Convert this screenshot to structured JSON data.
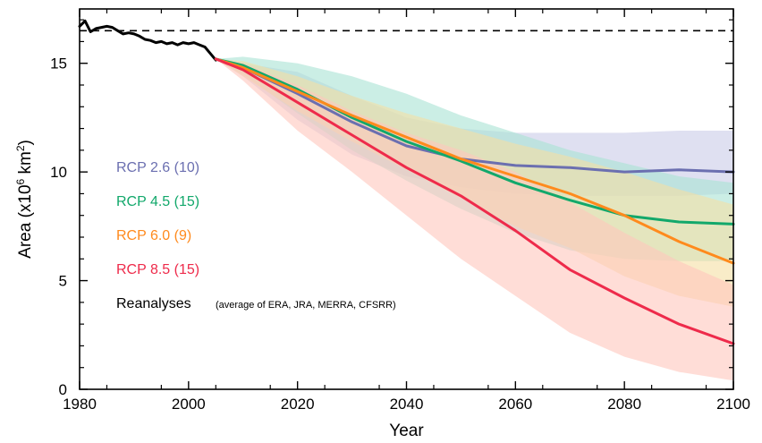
{
  "chart_data": {
    "type": "line",
    "xlabel": "Year",
    "ylabel": "Area (x10^6 km^2)",
    "ylabel_parts": {
      "base": "Area (x10",
      "exp1": "6",
      "mid": " km",
      "exp2": "2",
      "end": ")"
    },
    "xlim": [
      1980,
      2100
    ],
    "ylim": [
      0,
      17.5
    ],
    "xticks": [
      1980,
      2000,
      2020,
      2040,
      2060,
      2080,
      2100
    ],
    "yticks": [
      0,
      5,
      10,
      15
    ],
    "reference_line": {
      "y": 16.5,
      "style": "dashed",
      "color": "#000000"
    },
    "series": [
      {
        "name": "RCP 2.6 (10)",
        "color": "#6b6fb0",
        "band_color": "#c9cbe8",
        "x": [
          2005,
          2010,
          2020,
          2030,
          2040,
          2050,
          2060,
          2070,
          2080,
          2090,
          2100
        ],
        "y": [
          15.2,
          14.8,
          13.6,
          12.3,
          11.2,
          10.6,
          10.3,
          10.2,
          10.0,
          10.1,
          10.0
        ],
        "band_upper": [
          15.2,
          15.0,
          14.6,
          13.5,
          12.5,
          12.0,
          11.8,
          11.8,
          11.8,
          11.9,
          11.9
        ],
        "band_lower": [
          15.2,
          14.4,
          12.4,
          10.8,
          9.8,
          9.3,
          9.0,
          8.9,
          8.9,
          8.9,
          9.0
        ]
      },
      {
        "name": "RCP 4.5 (15)",
        "color": "#12a86b",
        "band_color": "#a8e3d4",
        "x": [
          2005,
          2010,
          2020,
          2030,
          2040,
          2050,
          2060,
          2070,
          2080,
          2090,
          2100
        ],
        "y": [
          15.2,
          14.9,
          13.8,
          12.5,
          11.4,
          10.5,
          9.5,
          8.7,
          8.0,
          7.7,
          7.6
        ],
        "band_upper": [
          15.2,
          15.3,
          15.0,
          14.4,
          13.6,
          12.6,
          11.8,
          11.0,
          10.4,
          9.8,
          9.5
        ],
        "band_lower": [
          15.2,
          14.5,
          12.7,
          11.0,
          9.6,
          8.3,
          7.2,
          6.4,
          6.0,
          5.9,
          5.9
        ]
      },
      {
        "name": "RCP 6.0 (9)",
        "color": "#ff8a1d",
        "band_color": "#f5dfa3",
        "x": [
          2005,
          2010,
          2020,
          2030,
          2040,
          2050,
          2060,
          2070,
          2080,
          2090,
          2100
        ],
        "y": [
          15.2,
          14.8,
          13.7,
          12.6,
          11.6,
          10.6,
          9.8,
          9.0,
          8.0,
          6.8,
          5.8
        ],
        "band_upper": [
          15.2,
          15.1,
          14.4,
          13.5,
          12.7,
          12.0,
          11.3,
          10.7,
          10.0,
          9.2,
          8.5
        ],
        "band_lower": [
          15.2,
          14.4,
          12.8,
          11.4,
          10.1,
          8.8,
          7.5,
          6.5,
          5.2,
          4.3,
          3.8
        ]
      },
      {
        "name": "RCP 8.5 (15)",
        "color": "#ee2b4b",
        "band_color": "#ffc6bd",
        "x": [
          2005,
          2010,
          2020,
          2030,
          2040,
          2050,
          2060,
          2070,
          2080,
          2090,
          2100
        ],
        "y": [
          15.2,
          14.7,
          13.2,
          11.7,
          10.2,
          8.9,
          7.3,
          5.5,
          4.2,
          3.0,
          2.1
        ],
        "band_upper": [
          15.2,
          15.0,
          14.0,
          12.8,
          11.8,
          11.0,
          10.0,
          8.6,
          7.2,
          5.9,
          4.8
        ],
        "band_lower": [
          15.2,
          14.2,
          11.9,
          10.0,
          8.0,
          6.0,
          4.3,
          2.6,
          1.5,
          0.8,
          0.4
        ]
      },
      {
        "name": "Reanalyses",
        "note": "(average of ERA, JRA, MERRA, CFSRR)",
        "color": "#000000",
        "x": [
          1980,
          1981,
          1982,
          1983,
          1984,
          1985,
          1986,
          1987,
          1988,
          1989,
          1990,
          1991,
          1992,
          1993,
          1994,
          1995,
          1996,
          1997,
          1998,
          1999,
          2000,
          2001,
          2002,
          2003,
          2004,
          2005
        ],
        "y": [
          16.7,
          16.95,
          16.45,
          16.6,
          16.65,
          16.7,
          16.65,
          16.5,
          16.35,
          16.4,
          16.35,
          16.25,
          16.1,
          16.05,
          15.95,
          16.0,
          15.9,
          15.95,
          15.85,
          15.95,
          15.9,
          15.95,
          15.85,
          15.75,
          15.45,
          15.15
        ]
      }
    ],
    "legend": {
      "placement": "left"
    }
  }
}
